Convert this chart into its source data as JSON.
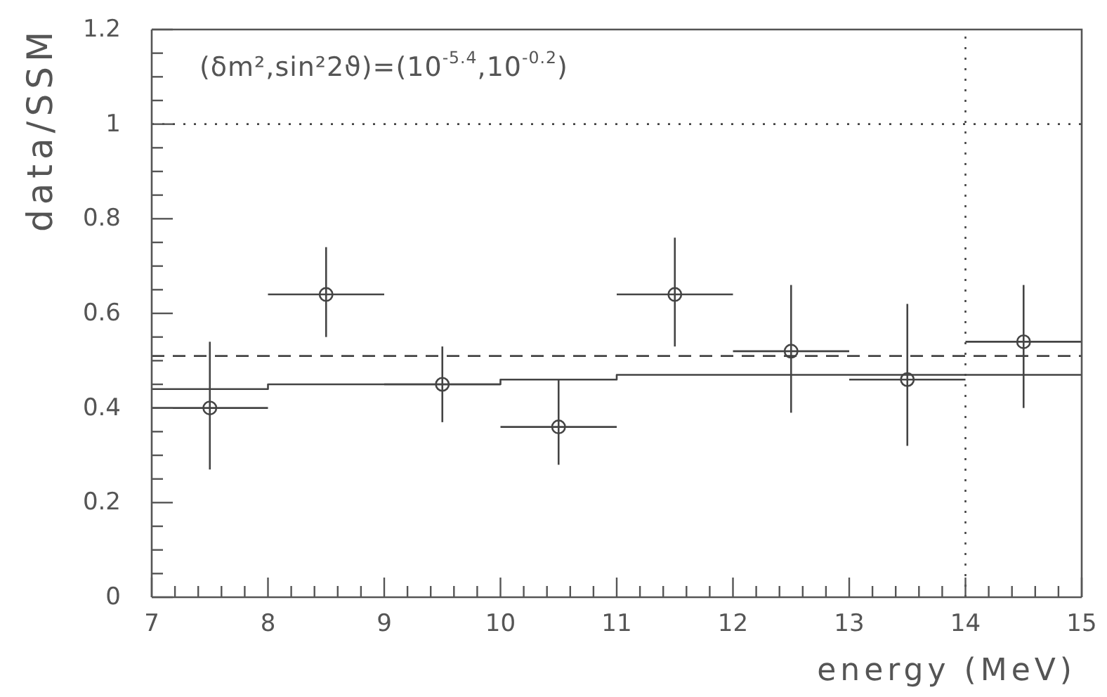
{
  "chart_data": {
    "type": "scatter",
    "xlabel": "energy (MeV)",
    "ylabel": "data/SSM",
    "annotations": [
      "(δm²,sin²2ϑ)=(10$^{-5.4}$,10$^{-0.2}$)"
    ],
    "x": [
      7.5,
      8.5,
      9.5,
      10.5,
      11.5,
      12.5,
      13.5,
      14.5
    ],
    "xlim": [
      7,
      15
    ],
    "xticks": [
      7,
      {
        "value": 7.2,
        "label": null
      },
      {
        "value": 7.4,
        "label": null
      },
      {
        "value": 7.6,
        "label": null
      },
      {
        "value": 7.8,
        "label": null
      },
      8,
      {
        "value": 8.2,
        "label": null
      },
      {
        "value": 8.4,
        "label": null
      },
      {
        "value": 8.6,
        "label": null
      },
      {
        "value": 8.8,
        "label": null
      },
      9,
      {
        "value": 9.2,
        "label": null
      },
      {
        "value": 9.4,
        "label": null
      },
      {
        "value": 9.6,
        "label": null
      },
      {
        "value": 9.8,
        "label": null
      },
      10,
      {
        "value": 10.2,
        "label": null
      },
      {
        "value": 10.4,
        "label": null
      },
      {
        "value": 10.6,
        "label": null
      },
      {
        "value": 10.8,
        "label": null
      },
      11,
      {
        "value": 11.2,
        "label": null
      },
      {
        "value": 11.4,
        "label": null
      },
      {
        "value": 11.6,
        "label": null
      },
      {
        "value": 11.8,
        "label": null
      },
      12,
      {
        "value": 12.2,
        "label": null
      },
      {
        "value": 12.4,
        "label": null
      },
      {
        "value": 12.6,
        "label": null
      },
      {
        "value": 12.8,
        "label": null
      },
      13,
      {
        "value": 13.2,
        "label": null
      },
      {
        "value": 13.4,
        "label": null
      },
      {
        "value": 13.6,
        "label": null
      },
      {
        "value": 13.8,
        "label": null
      },
      14,
      {
        "value": 14.2,
        "label": null
      },
      {
        "value": 14.4,
        "label": null
      },
      {
        "value": 14.6,
        "label": null
      },
      {
        "value": 14.8,
        "label": null
      },
      15
    ],
    "ylim": [
      0,
      1.2
    ],
    "yticks": [
      0,
      {
        "value": 0.05,
        "label": null
      },
      {
        "value": 0.1,
        "label": null
      },
      {
        "value": 0.15,
        "label": null
      },
      0.2,
      {
        "value": 0.25,
        "label": null
      },
      {
        "value": 0.3,
        "label": null
      },
      {
        "value": 0.35,
        "label": null
      },
      0.4,
      {
        "value": 0.45,
        "label": null
      },
      {
        "value": 0.5,
        "label": null
      },
      {
        "value": 0.55,
        "label": null
      },
      0.6,
      {
        "value": 0.65,
        "label": null
      },
      {
        "value": 0.7,
        "label": null
      },
      {
        "value": 0.75,
        "label": null
      },
      0.8,
      {
        "value": 0.85,
        "label": null
      },
      {
        "value": 0.9,
        "label": null
      },
      {
        "value": 0.95,
        "label": null
      },
      1,
      {
        "value": 1.05,
        "label": null
      },
      {
        "value": 1.1,
        "label": null
      },
      {
        "value": 1.15,
        "label": null
      },
      1.2
    ],
    "series": [
      {
        "type": "step",
        "color": "#444444",
        "x": [
          7,
          8,
          9,
          10,
          11,
          12,
          13,
          14,
          15
        ],
        "values": [
          0.44,
          0.45,
          0.45,
          0.46,
          0.47,
          0.47,
          0.47,
          0.47,
          0.47
        ]
      },
      {
        "color": "#444444",
        "marker": "circle",
        "values": [
          0.4,
          0.64,
          0.45,
          0.36,
          0.64,
          0.52,
          0.46,
          0.54
        ],
        "errors": [
          [
            0.27,
            0.54
          ],
          [
            0.55,
            0.74
          ],
          [
            0.37,
            0.53
          ],
          [
            0.28,
            0.46
          ],
          [
            0.53,
            0.76
          ],
          [
            0.39,
            0.66
          ],
          [
            0.32,
            0.62
          ],
          [
            0.4,
            0.66
          ]
        ],
        "xerrors": [
          0.5,
          0.5,
          0.5,
          0.5,
          0.5,
          0.5,
          0.5,
          0.5
        ]
      }
    ],
    "ref_lines": [
      {
        "axis": "y",
        "value": 0.51,
        "line_style": "dashed",
        "color": "#444444"
      },
      {
        "axis": "y",
        "value": 1,
        "line_style": "dotted",
        "color": "#444444"
      },
      {
        "axis": "x",
        "value": 14,
        "line_style": "dotted",
        "color": "#444444"
      }
    ]
  }
}
